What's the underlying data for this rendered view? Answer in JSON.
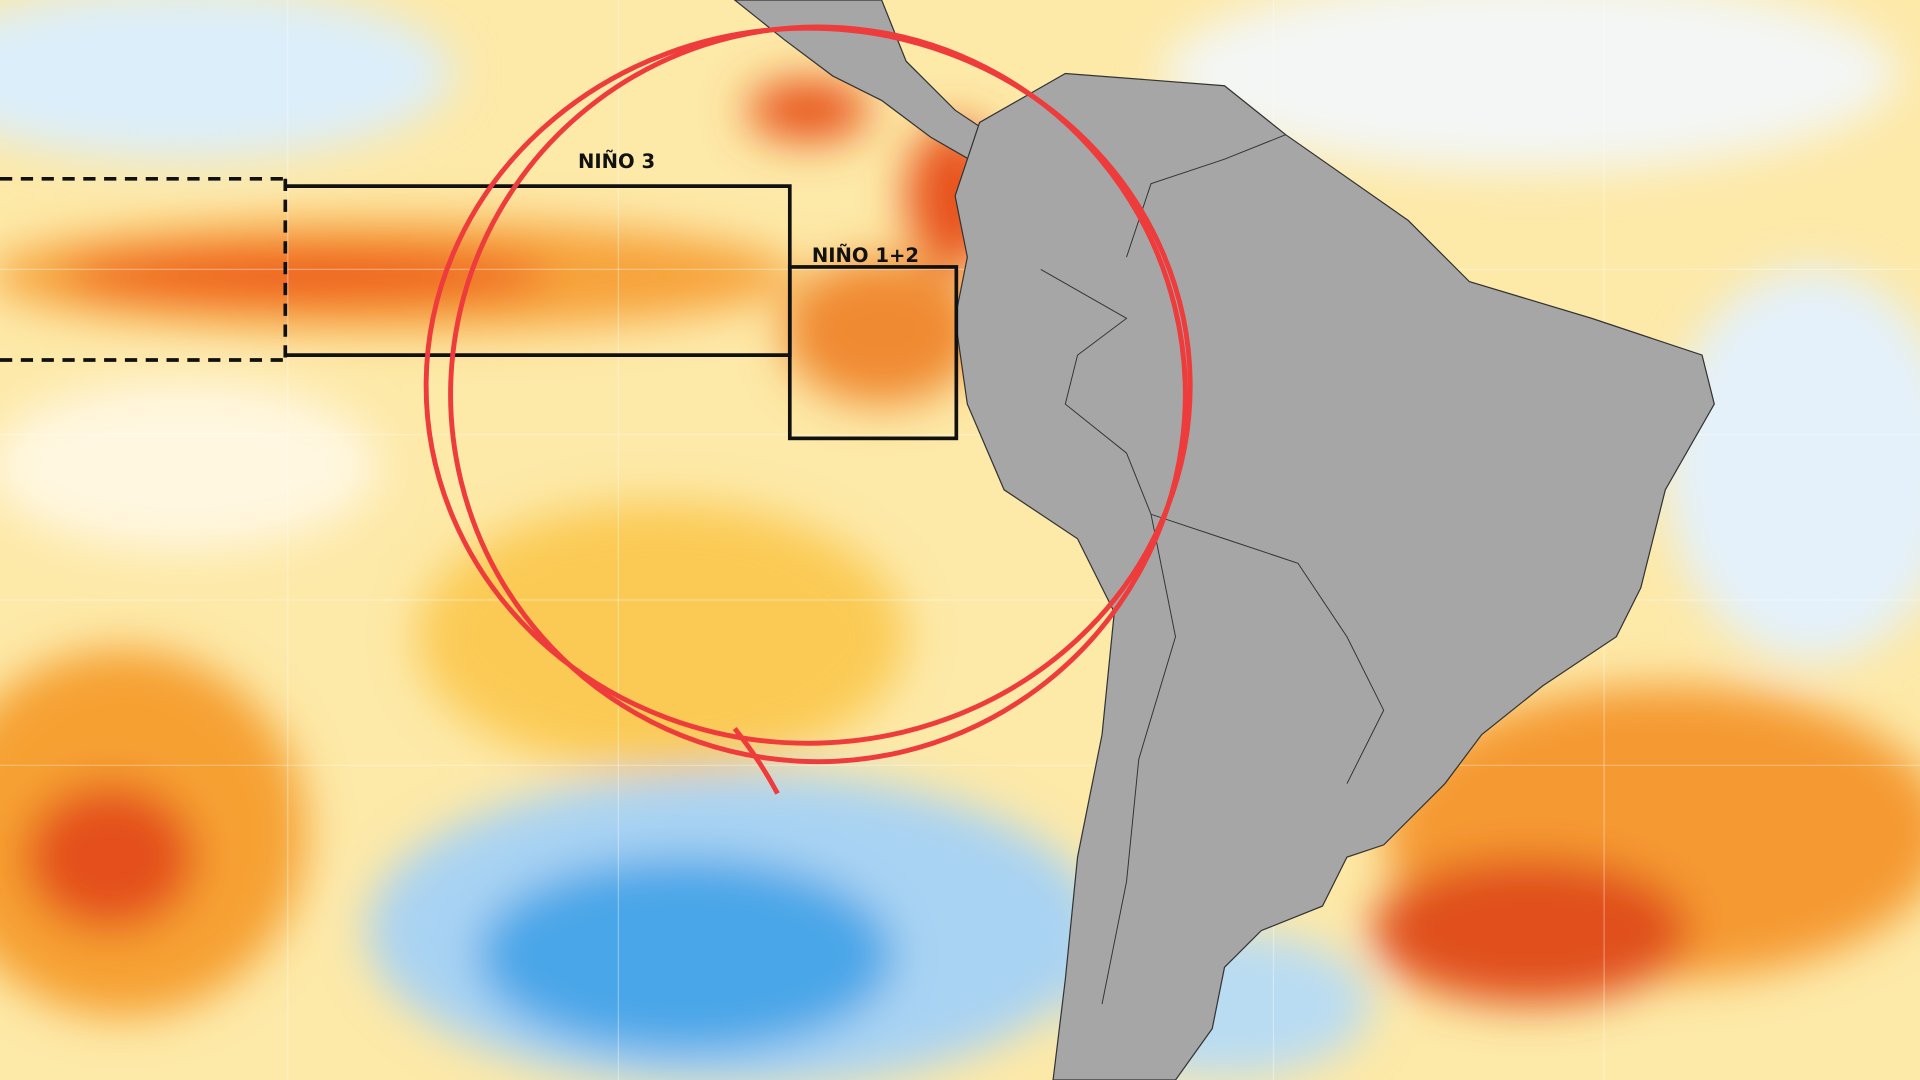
{
  "map": {
    "regions": [
      {
        "label": "NIÑO 3"
      },
      {
        "label": "NIÑO 1+2"
      }
    ]
  }
}
